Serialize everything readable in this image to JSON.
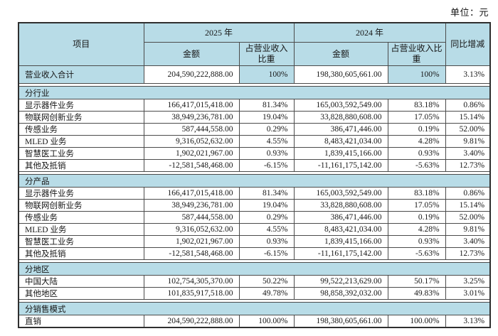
{
  "unit_label": "单位：元",
  "colors": {
    "header_bg": "#b8dce7",
    "border": "#4b4b4b",
    "text": "#161616",
    "cell_bg": "#ffffff"
  },
  "table": {
    "headers": {
      "item": "项目",
      "y2025": "2025 年",
      "y2024": "2024 年",
      "amount_2025": "金额",
      "proportion_2025": "占营业收入比重",
      "amount_2024": "金额",
      "proportion_2024": "占营业收入比重",
      "yoy": "同比增减"
    },
    "rows": [
      {
        "type": "total",
        "label": "营业收入合计",
        "a2025": "204,590,222,888.00",
        "p2025": "100%",
        "a2024": "198,380,605,661.00",
        "p2024": "100%",
        "yoy": "3.13%"
      },
      {
        "type": "section",
        "label": "分行业"
      },
      {
        "type": "data",
        "label": "显示器件业务",
        "a2025": "166,417,015,418.00",
        "p2025": "81.34%",
        "a2024": "165,003,592,549.00",
        "p2024": "83.18%",
        "yoy": "0.86%"
      },
      {
        "type": "data",
        "label": "物联网创新业务",
        "a2025": "38,949,236,781.00",
        "p2025": "19.04%",
        "a2024": "33,828,880,608.00",
        "p2024": "17.05%",
        "yoy": "15.14%"
      },
      {
        "type": "data",
        "label": "传感业务",
        "a2025": "587,444,558.00",
        "p2025": "0.29%",
        "a2024": "386,471,446.00",
        "p2024": "0.19%",
        "yoy": "52.00%"
      },
      {
        "type": "data",
        "label": "MLED 业务",
        "a2025": "9,316,052,632.00",
        "p2025": "4.55%",
        "a2024": "8,483,421,034.00",
        "p2024": "4.28%",
        "yoy": "9.81%"
      },
      {
        "type": "data",
        "label": "智慧医工业务",
        "a2025": "1,902,021,967.00",
        "p2025": "0.93%",
        "a2024": "1,839,415,166.00",
        "p2024": "0.93%",
        "yoy": "3.40%"
      },
      {
        "type": "data",
        "label": "其他及抵销",
        "a2025": "-12,581,548,468.00",
        "p2025": "-6.15%",
        "a2024": "-11,161,175,142.00",
        "p2024": "-5.63%",
        "yoy": "12.73%"
      },
      {
        "type": "section",
        "label": "分产品"
      },
      {
        "type": "data",
        "label": "显示器件业务",
        "a2025": "166,417,015,418.00",
        "p2025": "81.34%",
        "a2024": "165,003,592,549.00",
        "p2024": "83.18%",
        "yoy": "0.86%"
      },
      {
        "type": "data",
        "label": "物联网创新业务",
        "a2025": "38,949,236,781.00",
        "p2025": "19.04%",
        "a2024": "33,828,880,608.00",
        "p2024": "17.05%",
        "yoy": "15.14%"
      },
      {
        "type": "data",
        "label": "传感业务",
        "a2025": "587,444,558.00",
        "p2025": "0.29%",
        "a2024": "386,471,446.00",
        "p2024": "0.19%",
        "yoy": "52.00%"
      },
      {
        "type": "data",
        "label": "MLED 业务",
        "a2025": "9,316,052,632.00",
        "p2025": "4.55%",
        "a2024": "8,483,421,034.00",
        "p2024": "4.28%",
        "yoy": "9.81%"
      },
      {
        "type": "data",
        "label": "智慧医工业务",
        "a2025": "1,902,021,967.00",
        "p2025": "0.93%",
        "a2024": "1,839,415,166.00",
        "p2024": "0.93%",
        "yoy": "3.40%"
      },
      {
        "type": "data",
        "label": "其他及抵销",
        "a2025": "-12,581,548,468.00",
        "p2025": "-6.15%",
        "a2024": "-11,161,175,142.00",
        "p2024": "-5.63%",
        "yoy": "12.73%"
      },
      {
        "type": "section",
        "label": "分地区"
      },
      {
        "type": "data",
        "label": "中国大陆",
        "a2025": "102,754,305,370.00",
        "p2025": "50.22%",
        "a2024": "99,522,213,629.00",
        "p2024": "50.17%",
        "yoy": "3.25%"
      },
      {
        "type": "data",
        "label": "其他地区",
        "a2025": "101,835,917,518.00",
        "p2025": "49.78%",
        "a2024": "98,858,392,032.00",
        "p2024": "49.83%",
        "yoy": "3.01%"
      },
      {
        "type": "section",
        "label": "分销售模式"
      },
      {
        "type": "data",
        "label": "直销",
        "a2025": "204,590,222,888.00",
        "p2025": "100.00%",
        "a2024": "198,380,605,661.00",
        "p2024": "100.00%",
        "yoy": "3.13%"
      }
    ]
  }
}
